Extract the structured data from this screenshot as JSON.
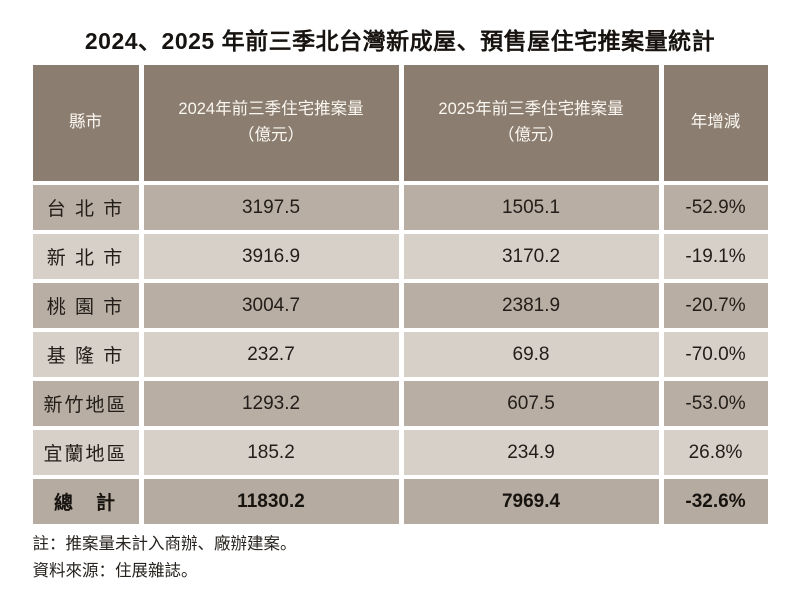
{
  "title": "2024、2025 年前三季北台灣新成屋、預售屋住宅推案量統計",
  "table": {
    "headers": [
      {
        "line1": "縣市",
        "line2": ""
      },
      {
        "line1": "2024年前三季住宅推案量",
        "line2": "（億元）"
      },
      {
        "line1": "2025年前三季住宅推案量",
        "line2": "（億元）"
      },
      {
        "line1": "年增減",
        "line2": ""
      }
    ],
    "rows": [
      {
        "region": "台 北 市",
        "y2024": "3197.5",
        "y2025": "1505.1",
        "yoy": "-52.9%"
      },
      {
        "region": "新 北 市",
        "y2024": "3916.9",
        "y2025": "3170.2",
        "yoy": "-19.1%"
      },
      {
        "region": "桃 園 市",
        "y2024": "3004.7",
        "y2025": "2381.9",
        "yoy": "-20.7%"
      },
      {
        "region": "基 隆 市",
        "y2024": "232.7",
        "y2025": "69.8",
        "yoy": "-70.0%"
      },
      {
        "region": "新竹地區",
        "y2024": "1293.2",
        "y2025": "607.5",
        "yoy": "-53.0%"
      },
      {
        "region": "宜蘭地區",
        "y2024": "185.2",
        "y2025": "234.9",
        "yoy": "26.8%"
      }
    ],
    "total_row": {
      "region": "總　計",
      "y2024": "11830.2",
      "y2025": "7969.4",
      "yoy": "-32.6%"
    }
  },
  "notes": [
    "註：推案量未計入商辦、廠辦建案。",
    "資料來源：住展雜誌。"
  ],
  "colors": {
    "page-bg": "#ffffff",
    "header-bg": "#8b7d70",
    "header-text": "#fbf7f1",
    "row-dark": "#b9aea4",
    "row-light": "#d7d0c9",
    "row-total": "#b5aba0",
    "data-text": "#221d18",
    "total-text": "#17130f",
    "title-text": "#161310",
    "note-text": "#27231f"
  },
  "chart_data": {
    "type": "table",
    "title": "2024、2025 年前三季北台灣新成屋、預售屋住宅推案量統計",
    "columns": [
      "縣市",
      "2024年前三季住宅推案量（億元）",
      "2025年前三季住宅推案量（億元）",
      "年增減"
    ],
    "rows": [
      [
        "台北市",
        3197.5,
        1505.1,
        "-52.9%"
      ],
      [
        "新北市",
        3916.9,
        3170.2,
        "-19.1%"
      ],
      [
        "桃園市",
        3004.7,
        2381.9,
        "-20.7%"
      ],
      [
        "基隆市",
        232.7,
        69.8,
        "-70.0%"
      ],
      [
        "新竹地區",
        1293.2,
        607.5,
        "-53.0%"
      ],
      [
        "宜蘭地區",
        185.2,
        234.9,
        "26.8%"
      ]
    ],
    "total": [
      "總計",
      11830.2,
      7969.4,
      "-32.6%"
    ],
    "notes": [
      "註：推案量未計入商辦、廠辦建案。",
      "資料來源：住展雜誌。"
    ]
  }
}
